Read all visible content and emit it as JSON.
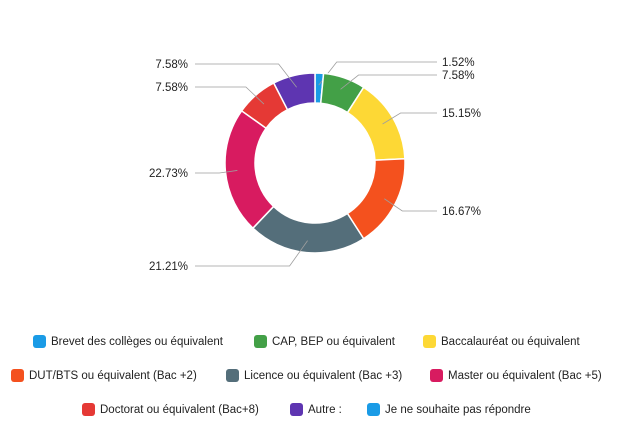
{
  "chart_data": {
    "type": "pie",
    "donut": true,
    "slices": [
      {
        "label": "Je ne souhaite pas répondre",
        "value": 1.52,
        "value_label": "1.52%",
        "color": "#1a9be6"
      },
      {
        "label": "CAP, BEP ou équivalent",
        "value": 7.58,
        "value_label": "7.58%",
        "color": "#43a047"
      },
      {
        "label": "Baccalauréat ou équivalent",
        "value": 15.15,
        "value_label": "15.15%",
        "color": "#fdd835"
      },
      {
        "label": "DUT/BTS ou équivalent (Bac +2)",
        "value": 16.67,
        "value_label": "16.67%",
        "color": "#f4511e"
      },
      {
        "label": "Licence ou équivalent (Bac +3)",
        "value": 21.21,
        "value_label": "21.21%",
        "color": "#546e7a"
      },
      {
        "label": "Master ou équivalent (Bac +5)",
        "value": 22.73,
        "value_label": "22.73%",
        "color": "#d81b60"
      },
      {
        "label": "Doctorat ou équivalent (Bac+8)",
        "value": 7.58,
        "value_label": "7.58%",
        "color": "#e53935"
      },
      {
        "label": "Autre :",
        "value": 7.58,
        "value_label": "7.58%",
        "color": "#5e35b1"
      },
      {
        "label": "Brevet des collèges ou équivalent",
        "value": 0,
        "value_label": "",
        "color": "#1a9be6"
      }
    ],
    "legend": {
      "position": "bottom",
      "rows": [
        [
          {
            "label": "Brevet des collèges ou équivalent",
            "color": "#1a9be6"
          },
          {
            "label": "CAP, BEP ou équivalent",
            "color": "#43a047"
          },
          {
            "label": "Baccalauréat ou équivalent",
            "color": "#fdd835"
          }
        ],
        [
          {
            "label": "DUT/BTS ou équivalent (Bac +2)",
            "color": "#f4511e"
          },
          {
            "label": "Licence ou équivalent (Bac +3)",
            "color": "#546e7a"
          },
          {
            "label": "Master ou équivalent (Bac +5)",
            "color": "#d81b60"
          }
        ],
        [
          {
            "label": "Doctorat ou équivalent (Bac+8)",
            "color": "#e53935"
          },
          {
            "label": "Autre :",
            "color": "#5e35b1"
          },
          {
            "label": "Je ne souhaite pas répondre",
            "color": "#1a9be6"
          }
        ]
      ]
    }
  }
}
